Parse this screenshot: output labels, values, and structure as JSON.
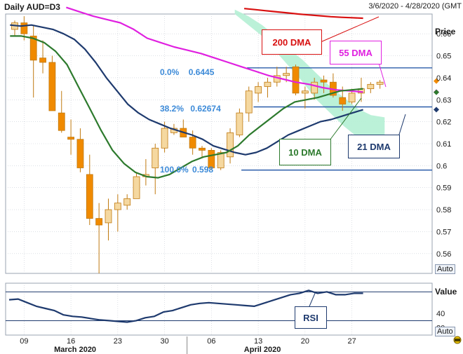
{
  "window": {
    "title": "Daily AUD=D3",
    "date_range": "3/6/2020 - 4/28/2020 (GMT"
  },
  "price_panel": {
    "axis_title": "Price",
    "auto_label": "Auto",
    "y_ticks": [
      "0.66",
      "0.65",
      "0.64",
      "0.63",
      "0.62",
      "0.61",
      "0.6",
      "0.59",
      "0.58",
      "0.57",
      "0.56"
    ],
    "ylim": [
      0.551,
      0.669
    ]
  },
  "rsi_panel": {
    "axis_title": "Value",
    "y_ticks": [
      "40",
      "20"
    ],
    "auto_label": "Auto",
    "label": "RSI",
    "ylim": [
      10,
      82
    ]
  },
  "x_axis": {
    "ticks": [
      {
        "label": "09",
        "month_label": "",
        "i": 1
      },
      {
        "label": "16",
        "month_label": "March 2020",
        "i": 6
      },
      {
        "label": "23",
        "month_label": "",
        "i": 11
      },
      {
        "label": "30",
        "month_label": "",
        "i": 16
      },
      {
        "label": "06",
        "month_label": "",
        "i": 21
      },
      {
        "label": "13",
        "month_label": "April 2020",
        "i": 26
      },
      {
        "label": "20",
        "month_label": "",
        "i": 31
      },
      {
        "label": "27",
        "month_label": "",
        "i": 36
      }
    ]
  },
  "annotations": {
    "dma_200": "200 DMA",
    "dma_55": "55 DMA",
    "dma_10": "10 DMA",
    "dma_21": "21 DMA",
    "fib_0": "0.0%",
    "fib_0_value": "0.6445",
    "fib_382": "38.2%",
    "fib_382_value": "0.62674",
    "fib_100": "100.0%",
    "fib_100_value": "0.598"
  },
  "colors": {
    "up": "#f5d8a0",
    "down": "#f08a00",
    "dma_200": "#d81010",
    "dma_55": "#e020e0",
    "dma_10": "#2d7a2d",
    "dma_21": "#1e3a6e",
    "fib_line": "#2a5caa",
    "fib_text": "#3c8ad8",
    "band": "#b7f0d6",
    "rsi": "#1e3a6e",
    "grid": "#c8cdd6"
  },
  "chart_data": [
    {
      "type": "candlestick",
      "title": "Daily AUD=D3",
      "ylabel": "Price",
      "x_start": "2020-03-06",
      "ohlc": [
        [
          0.662,
          0.666,
          0.659,
          0.665
        ],
        [
          0.665,
          0.668,
          0.657,
          0.66
        ],
        [
          0.659,
          0.664,
          0.631,
          0.648
        ],
        [
          0.649,
          0.657,
          0.642,
          0.647
        ],
        [
          0.647,
          0.65,
          0.625,
          0.625
        ],
        [
          0.624,
          0.634,
          0.615,
          0.616
        ],
        [
          0.613,
          0.621,
          0.605,
          0.612
        ],
        [
          0.612,
          0.617,
          0.597,
          0.599
        ],
        [
          0.596,
          0.605,
          0.573,
          0.576
        ],
        [
          0.576,
          0.583,
          0.551,
          0.573
        ],
        [
          0.574,
          0.585,
          0.566,
          0.58
        ],
        [
          0.58,
          0.587,
          0.57,
          0.583
        ],
        [
          0.582,
          0.587,
          0.58,
          0.585
        ],
        [
          0.585,
          0.597,
          0.585,
          0.595
        ],
        [
          0.595,
          0.603,
          0.591,
          0.596
        ],
        [
          0.599,
          0.61,
          0.587,
          0.608
        ],
        [
          0.608,
          0.62,
          0.606,
          0.617
        ],
        [
          0.615,
          0.619,
          0.614,
          0.617
        ],
        [
          0.617,
          0.621,
          0.613,
          0.613
        ],
        [
          0.613,
          0.616,
          0.605,
          0.608
        ],
        [
          0.608,
          0.609,
          0.604,
          0.607
        ],
        [
          0.607,
          0.608,
          0.598,
          0.599
        ],
        [
          0.599,
          0.607,
          0.598,
          0.606
        ],
        [
          0.604,
          0.617,
          0.601,
          0.615
        ],
        [
          0.614,
          0.626,
          0.613,
          0.624
        ],
        [
          0.624,
          0.636,
          0.62,
          0.634
        ],
        [
          0.633,
          0.638,
          0.629,
          0.636
        ],
        [
          0.636,
          0.64,
          0.631,
          0.638
        ],
        [
          0.638,
          0.645,
          0.636,
          0.641
        ],
        [
          0.641,
          0.645,
          0.638,
          0.642
        ],
        [
          0.645,
          0.646,
          0.632,
          0.633
        ],
        [
          0.633,
          0.636,
          0.626,
          0.634
        ],
        [
          0.633,
          0.64,
          0.63,
          0.638
        ],
        [
          0.639,
          0.641,
          0.633,
          0.638
        ],
        [
          0.638,
          0.642,
          0.631,
          0.632
        ],
        [
          0.631,
          0.636,
          0.625,
          0.628
        ],
        [
          0.629,
          0.635,
          0.628,
          0.633
        ],
        [
          0.633,
          0.64,
          0.629,
          0.635
        ],
        [
          0.635,
          0.638,
          0.633,
          0.637
        ],
        [
          0.637,
          0.639,
          0.635,
          0.638
        ]
      ],
      "series": [
        {
          "name": "200 DMA",
          "color": "#d81010",
          "values": [
            0.6715,
            0.671,
            0.6705,
            0.67,
            0.6695,
            0.669,
            0.6686,
            0.6682,
            0.6678,
            0.6675,
            0.6673,
            0.6671
          ]
        },
        {
          "name": "55 DMA",
          "color": "#e020e0",
          "values": [
            0.672,
            0.67,
            0.668,
            0.6665,
            0.665,
            0.662,
            0.658,
            0.656,
            0.654,
            0.6525,
            0.651,
            0.649,
            0.647,
            0.645,
            0.643,
            0.641,
            0.6395,
            0.638,
            0.637,
            0.6355,
            0.6345,
            0.634,
            0.6335
          ]
        },
        {
          "name": "21 DMA",
          "color": "#1e3a6e",
          "values": [
            0.664,
            0.6635,
            0.664,
            0.663,
            0.662,
            0.66,
            0.6575,
            0.653,
            0.647,
            0.64,
            0.634,
            0.628,
            0.624,
            0.621,
            0.619,
            0.617,
            0.6155,
            0.614,
            0.612,
            0.609,
            0.6075,
            0.606,
            0.605,
            0.606,
            0.608,
            0.611,
            0.614,
            0.616,
            0.618,
            0.62,
            0.621,
            0.6225,
            0.624,
            0.6255
          ]
        },
        {
          "name": "10 DMA",
          "color": "#2d7a2d",
          "values": [
            0.659,
            0.659,
            0.658,
            0.656,
            0.652,
            0.646,
            0.636,
            0.626,
            0.616,
            0.607,
            0.601,
            0.597,
            0.595,
            0.5945,
            0.596,
            0.599,
            0.602,
            0.604,
            0.605,
            0.606,
            0.609,
            0.614,
            0.618,
            0.622,
            0.626,
            0.629,
            0.63,
            0.631,
            0.6325,
            0.634,
            0.6345,
            0.635
          ]
        }
      ],
      "dma_points": [
        0,
        1,
        2,
        3,
        4,
        5,
        6,
        7,
        8,
        9,
        10,
        11,
        12,
        13,
        14,
        15,
        16,
        17,
        18,
        19,
        20,
        21,
        22,
        23,
        24,
        25,
        26,
        27,
        28,
        29,
        30,
        31,
        32,
        33,
        34,
        35,
        36,
        37,
        38,
        39
      ],
      "fib_levels": [
        {
          "label": "0.0%",
          "value": 0.6445
        },
        {
          "label": "38.2%",
          "value": 0.62674
        },
        {
          "label": "100.0%",
          "value": 0.598
        }
      ],
      "cloud_top": [
        [
          0.671,
          0.668,
          0.664,
          0.659,
          0.653,
          0.648,
          0.642,
          0.636,
          0.631,
          0.626,
          0.623,
          0.622
        ]
      ],
      "cloud_bottom": [
        [
          0.669,
          0.664,
          0.659,
          0.652,
          0.645,
          0.638,
          0.63,
          0.624,
          0.618,
          0.613,
          0.611,
          0.608
        ]
      ]
    },
    {
      "type": "line",
      "title": "",
      "ylabel": "Value",
      "series": [
        {
          "name": "RSI",
          "values": [
            59,
            60,
            55,
            50,
            47,
            44,
            38,
            36,
            35,
            33,
            31,
            30,
            29,
            28,
            30,
            34,
            36,
            42,
            44,
            48,
            52,
            54,
            55,
            54,
            53,
            52,
            51,
            50,
            54,
            58,
            62,
            66,
            68,
            72,
            68,
            70,
            66,
            66,
            68,
            68
          ]
        }
      ]
    }
  ]
}
